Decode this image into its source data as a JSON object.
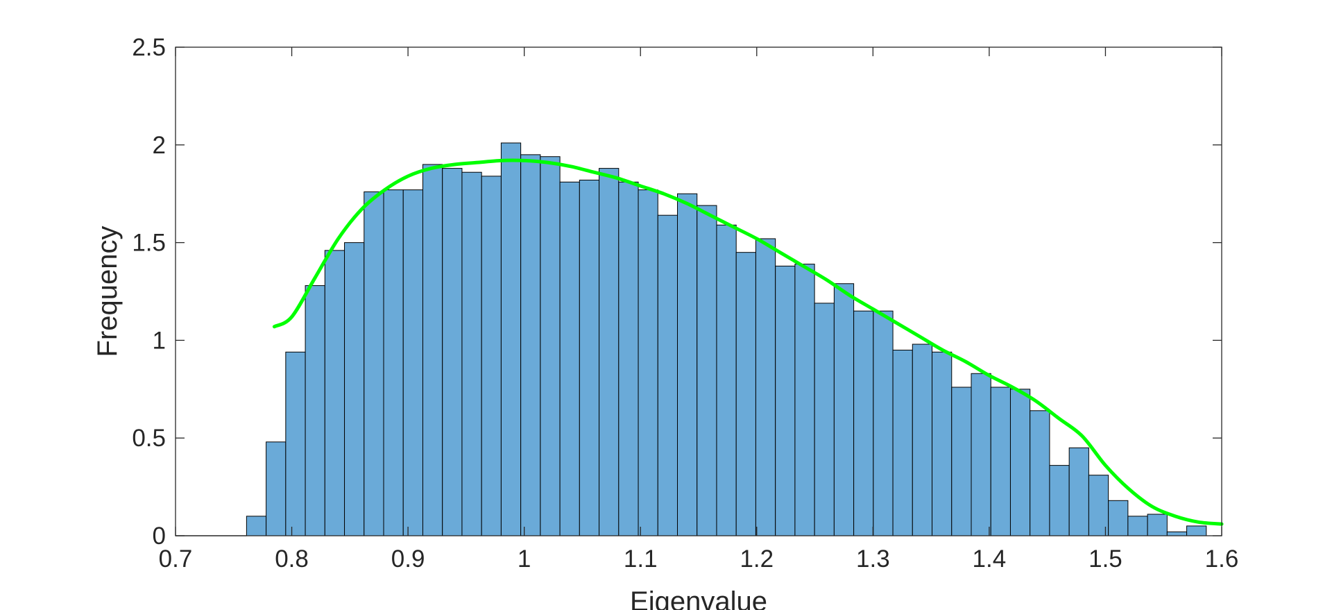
{
  "chart_data": {
    "type": "bar",
    "xlabel": "Eigenvalue",
    "ylabel": "Frequency",
    "xlim": [
      0.7,
      1.6
    ],
    "ylim": [
      0,
      2.5
    ],
    "xticks": [
      0.7,
      0.8,
      0.9,
      1.0,
      1.1,
      1.2,
      1.3,
      1.4,
      1.5,
      1.6
    ],
    "xtick_labels": [
      "0.7",
      "0.8",
      "0.9",
      "1",
      "1.1",
      "1.2",
      "1.3",
      "1.4",
      "1.5",
      "1.6"
    ],
    "yticks": [
      0,
      0.5,
      1.0,
      1.5,
      2.0,
      2.5
    ],
    "ytick_labels": [
      "0",
      "0.5",
      "1",
      "1.5",
      "2",
      "2.5"
    ],
    "grid": false,
    "box": true,
    "histogram": {
      "name": "",
      "bin_start": 0.7611,
      "bin_width": 0.01685,
      "values": [
        0.1,
        0.48,
        0.94,
        1.28,
        1.46,
        1.5,
        1.76,
        1.77,
        1.77,
        1.9,
        1.88,
        1.86,
        1.84,
        2.01,
        1.95,
        1.94,
        1.81,
        1.82,
        1.88,
        1.81,
        1.77,
        1.64,
        1.75,
        1.69,
        1.59,
        1.45,
        1.52,
        1.38,
        1.39,
        1.19,
        1.29,
        1.15,
        1.15,
        0.95,
        0.98,
        0.94,
        0.76,
        0.83,
        0.76,
        0.75,
        0.64,
        0.36,
        0.45,
        0.31,
        0.18,
        0.1,
        0.11,
        0.02,
        0.05
      ],
      "face_color": "#6aaad8",
      "edge_color": "#000000"
    },
    "fit_curve": {
      "name": "",
      "color": "#00ff00",
      "x": [
        0.785,
        0.8,
        0.82,
        0.84,
        0.86,
        0.88,
        0.9,
        0.92,
        0.94,
        0.96,
        0.98,
        1.0,
        1.02,
        1.04,
        1.06,
        1.08,
        1.1,
        1.12,
        1.14,
        1.16,
        1.18,
        1.2,
        1.22,
        1.24,
        1.26,
        1.28,
        1.3,
        1.32,
        1.34,
        1.36,
        1.38,
        1.4,
        1.42,
        1.44,
        1.46,
        1.48,
        1.5,
        1.52,
        1.54,
        1.56,
        1.58,
        1.6
      ],
      "y": [
        1.07,
        1.12,
        1.32,
        1.52,
        1.67,
        1.77,
        1.84,
        1.88,
        1.9,
        1.91,
        1.92,
        1.92,
        1.91,
        1.89,
        1.86,
        1.83,
        1.79,
        1.75,
        1.7,
        1.64,
        1.58,
        1.52,
        1.45,
        1.38,
        1.31,
        1.23,
        1.16,
        1.09,
        1.02,
        0.95,
        0.89,
        0.82,
        0.76,
        0.69,
        0.6,
        0.51,
        0.36,
        0.24,
        0.15,
        0.1,
        0.07,
        0.06
      ]
    }
  }
}
